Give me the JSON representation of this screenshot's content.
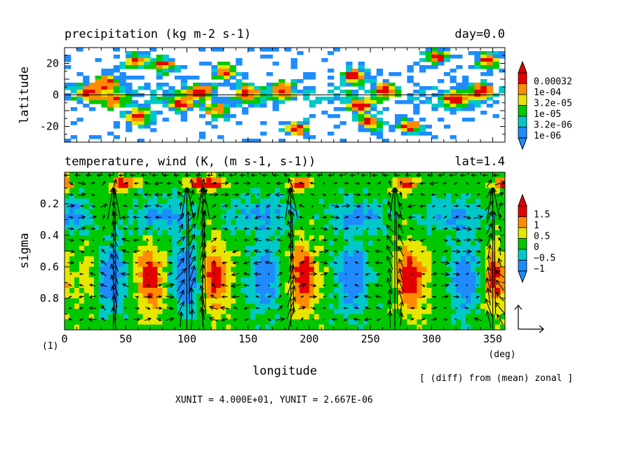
{
  "chart_data": [
    {
      "type": "heatmap",
      "title": "precipitation (kg m-2 s-1)",
      "title_right": "day=0.0",
      "xlabel": "",
      "ylabel": "latitude",
      "xlim": [
        0,
        360
      ],
      "ylim": [
        -30,
        30
      ],
      "yticks": [
        "20",
        "0",
        "-20"
      ],
      "ytick_values": [
        20,
        0,
        -20
      ],
      "zero_line": true,
      "grid": false,
      "legend_position": "right",
      "legend": {
        "labels": [
          "0.00032",
          "1e-04",
          "3.2e-05",
          "1e-05",
          "3.2e-06",
          "1e-06"
        ],
        "colors": [
          "#e50000",
          "#ff8c00",
          "#e6e600",
          "#00c800",
          "#00c8c8",
          "#1e8cff"
        ]
      },
      "rain_bands": [
        {
          "lat": 2,
          "lon": 20
        },
        {
          "lat": -3,
          "lon": 40
        },
        {
          "lat": 8,
          "lon": 35
        },
        {
          "lat": 21,
          "lon": 58
        },
        {
          "lat": 19,
          "lon": 80
        },
        {
          "lat": -5,
          "lon": 95
        },
        {
          "lat": 2,
          "lon": 110
        },
        {
          "lat": -10,
          "lon": 125
        },
        {
          "lat": 1,
          "lon": 150
        },
        {
          "lat": 3,
          "lon": 178
        },
        {
          "lat": -22,
          "lon": 190
        },
        {
          "lat": 12,
          "lon": 235
        },
        {
          "lat": -7,
          "lon": 242
        },
        {
          "lat": 3,
          "lon": 262
        },
        {
          "lat": -20,
          "lon": 282
        },
        {
          "lat": 24,
          "lon": 305
        },
        {
          "lat": -3,
          "lon": 318
        },
        {
          "lat": 3,
          "lon": 340
        },
        {
          "lat": 22,
          "lon": 346
        },
        {
          "lat": -18,
          "lon": 250
        },
        {
          "lat": 15,
          "lon": 130
        },
        {
          "lat": -14,
          "lon": 60
        }
      ]
    },
    {
      "type": "heatmap",
      "title": "temperature, wind (K, (m s-1, s-1))",
      "title_right": "lat=1.4",
      "xlabel": "longitude",
      "x_unit": "(deg)",
      "ylabel": "sigma",
      "xlim": [
        0,
        360
      ],
      "ylim": [
        1.0,
        0.0
      ],
      "xticks": [
        "0",
        "50",
        "100",
        "150",
        "200",
        "250",
        "300",
        "350"
      ],
      "xtick_values": [
        0,
        50,
        100,
        150,
        200,
        250,
        300,
        350
      ],
      "yticks": [
        "0.2",
        "0.4",
        "0.6",
        "0.8"
      ],
      "ytick_values": [
        0.2,
        0.4,
        0.6,
        0.8
      ],
      "grid": false,
      "legend_position": "right",
      "legend": {
        "labels": [
          "1.5",
          "1",
          "0.5",
          "0",
          "−0.5",
          "−1"
        ],
        "colors": [
          "#e50000",
          "#ff8c00",
          "#e6e600",
          "#00c800",
          "#00c8c8",
          "#1e8cff"
        ]
      },
      "warm_columns": [
        {
          "lon": 20,
          "amp": 0.6
        },
        {
          "lon": 70,
          "amp": 1.6
        },
        {
          "lon": 123,
          "amp": 1.7
        },
        {
          "lon": 195,
          "amp": 1.8
        },
        {
          "lon": 283,
          "amp": 1.8
        },
        {
          "lon": 352,
          "amp": 1.4
        }
      ],
      "cold_columns": [
        {
          "lon": 38,
          "amp": 1.5
        },
        {
          "lon": 100,
          "amp": 1.4
        },
        {
          "lon": 163,
          "amp": 1.3
        },
        {
          "lon": 235,
          "amp": 1.6
        },
        {
          "lon": 328,
          "amp": 1.4
        }
      ],
      "updraft_longitudes": [
        40,
        100,
        113,
        185,
        270,
        350
      ],
      "frame_label": "(1)"
    }
  ],
  "annotations": {
    "diff_note": "[ (diff) from (mean) zonal ]",
    "units_line": "XUNIT = 4.000E+01, YUNIT = 2.667E-06"
  }
}
